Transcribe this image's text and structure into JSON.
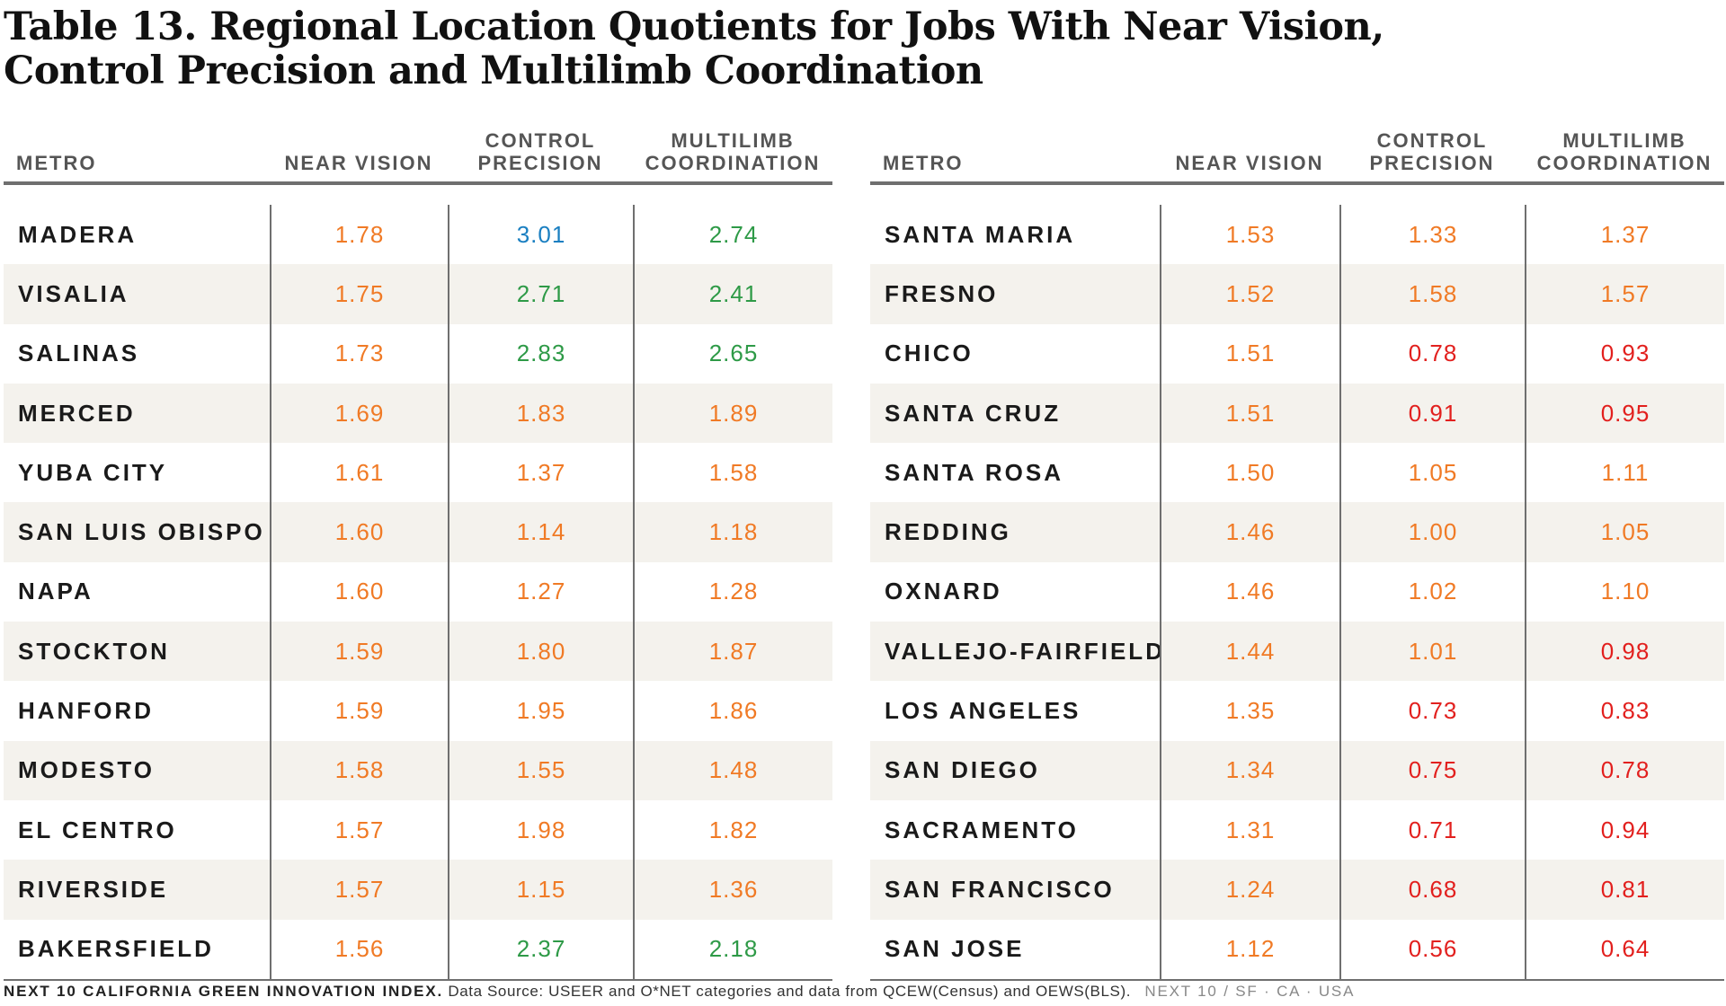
{
  "title": {
    "line1": "Table 13. Regional Location Quotients for Jobs With Near Vision,",
    "line2": "Control Precision and Multilimb Coordination"
  },
  "columns": {
    "metro": "METRO",
    "near_vision": "NEAR VISION",
    "control_precision": [
      "CONTROL",
      "PRECISION"
    ],
    "multilimb_coordination": [
      "MULTILIMB",
      "COORDINATION"
    ]
  },
  "colors": {
    "orange": "#f07a25",
    "red": "#e2201e",
    "green": "#2e9a47",
    "blue": "#1a7fc1"
  },
  "left_rows": [
    {
      "metro": "MADERA",
      "near_vision": {
        "v": "1.78",
        "c": "orange"
      },
      "control_precision": {
        "v": "3.01",
        "c": "blue"
      },
      "multilimb": {
        "v": "2.74",
        "c": "green"
      }
    },
    {
      "metro": "VISALIA",
      "near_vision": {
        "v": "1.75",
        "c": "orange"
      },
      "control_precision": {
        "v": "2.71",
        "c": "green"
      },
      "multilimb": {
        "v": "2.41",
        "c": "green"
      }
    },
    {
      "metro": "SALINAS",
      "near_vision": {
        "v": "1.73",
        "c": "orange"
      },
      "control_precision": {
        "v": "2.83",
        "c": "green"
      },
      "multilimb": {
        "v": "2.65",
        "c": "green"
      }
    },
    {
      "metro": "MERCED",
      "near_vision": {
        "v": "1.69",
        "c": "orange"
      },
      "control_precision": {
        "v": "1.83",
        "c": "orange"
      },
      "multilimb": {
        "v": "1.89",
        "c": "orange"
      }
    },
    {
      "metro": "YUBA CITY",
      "near_vision": {
        "v": "1.61",
        "c": "orange"
      },
      "control_precision": {
        "v": "1.37",
        "c": "orange"
      },
      "multilimb": {
        "v": "1.58",
        "c": "orange"
      }
    },
    {
      "metro": "SAN LUIS OBISPO",
      "near_vision": {
        "v": "1.60",
        "c": "orange"
      },
      "control_precision": {
        "v": "1.14",
        "c": "orange"
      },
      "multilimb": {
        "v": "1.18",
        "c": "orange"
      }
    },
    {
      "metro": "NAPA",
      "near_vision": {
        "v": "1.60",
        "c": "orange"
      },
      "control_precision": {
        "v": "1.27",
        "c": "orange"
      },
      "multilimb": {
        "v": "1.28",
        "c": "orange"
      }
    },
    {
      "metro": "STOCKTON",
      "near_vision": {
        "v": "1.59",
        "c": "orange"
      },
      "control_precision": {
        "v": "1.80",
        "c": "orange"
      },
      "multilimb": {
        "v": "1.87",
        "c": "orange"
      }
    },
    {
      "metro": "HANFORD",
      "near_vision": {
        "v": "1.59",
        "c": "orange"
      },
      "control_precision": {
        "v": "1.95",
        "c": "orange"
      },
      "multilimb": {
        "v": "1.86",
        "c": "orange"
      }
    },
    {
      "metro": "MODESTO",
      "near_vision": {
        "v": "1.58",
        "c": "orange"
      },
      "control_precision": {
        "v": "1.55",
        "c": "orange"
      },
      "multilimb": {
        "v": "1.48",
        "c": "orange"
      }
    },
    {
      "metro": "EL CENTRO",
      "near_vision": {
        "v": "1.57",
        "c": "orange"
      },
      "control_precision": {
        "v": "1.98",
        "c": "orange"
      },
      "multilimb": {
        "v": "1.82",
        "c": "orange"
      }
    },
    {
      "metro": "RIVERSIDE",
      "near_vision": {
        "v": "1.57",
        "c": "orange"
      },
      "control_precision": {
        "v": "1.15",
        "c": "orange"
      },
      "multilimb": {
        "v": "1.36",
        "c": "orange"
      }
    },
    {
      "metro": "BAKERSFIELD",
      "near_vision": {
        "v": "1.56",
        "c": "orange"
      },
      "control_precision": {
        "v": "2.37",
        "c": "green"
      },
      "multilimb": {
        "v": "2.18",
        "c": "green"
      }
    }
  ],
  "right_rows": [
    {
      "metro": "SANTA MARIA",
      "near_vision": {
        "v": "1.53",
        "c": "orange"
      },
      "control_precision": {
        "v": "1.33",
        "c": "orange"
      },
      "multilimb": {
        "v": "1.37",
        "c": "orange"
      }
    },
    {
      "metro": "FRESNO",
      "near_vision": {
        "v": "1.52",
        "c": "orange"
      },
      "control_precision": {
        "v": "1.58",
        "c": "orange"
      },
      "multilimb": {
        "v": "1.57",
        "c": "orange"
      }
    },
    {
      "metro": "CHICO",
      "near_vision": {
        "v": "1.51",
        "c": "orange"
      },
      "control_precision": {
        "v": "0.78",
        "c": "red"
      },
      "multilimb": {
        "v": "0.93",
        "c": "red"
      }
    },
    {
      "metro": "SANTA CRUZ",
      "near_vision": {
        "v": "1.51",
        "c": "orange"
      },
      "control_precision": {
        "v": "0.91",
        "c": "red"
      },
      "multilimb": {
        "v": "0.95",
        "c": "red"
      }
    },
    {
      "metro": "SANTA ROSA",
      "near_vision": {
        "v": "1.50",
        "c": "orange"
      },
      "control_precision": {
        "v": "1.05",
        "c": "orange"
      },
      "multilimb": {
        "v": "1.11",
        "c": "orange"
      }
    },
    {
      "metro": "REDDING",
      "near_vision": {
        "v": "1.46",
        "c": "orange"
      },
      "control_precision": {
        "v": "1.00",
        "c": "orange"
      },
      "multilimb": {
        "v": "1.05",
        "c": "orange"
      }
    },
    {
      "metro": "OXNARD",
      "near_vision": {
        "v": "1.46",
        "c": "orange"
      },
      "control_precision": {
        "v": "1.02",
        "c": "orange"
      },
      "multilimb": {
        "v": "1.10",
        "c": "orange"
      }
    },
    {
      "metro": "VALLEJO-FAIRFIELD",
      "near_vision": {
        "v": "1.44",
        "c": "orange"
      },
      "control_precision": {
        "v": "1.01",
        "c": "orange"
      },
      "multilimb": {
        "v": "0.98",
        "c": "red"
      }
    },
    {
      "metro": "LOS ANGELES",
      "near_vision": {
        "v": "1.35",
        "c": "orange"
      },
      "control_precision": {
        "v": "0.73",
        "c": "red"
      },
      "multilimb": {
        "v": "0.83",
        "c": "red"
      }
    },
    {
      "metro": "SAN DIEGO",
      "near_vision": {
        "v": "1.34",
        "c": "orange"
      },
      "control_precision": {
        "v": "0.75",
        "c": "red"
      },
      "multilimb": {
        "v": "0.78",
        "c": "red"
      }
    },
    {
      "metro": "SACRAMENTO",
      "near_vision": {
        "v": "1.31",
        "c": "orange"
      },
      "control_precision": {
        "v": "0.71",
        "c": "red"
      },
      "multilimb": {
        "v": "0.94",
        "c": "red"
      }
    },
    {
      "metro": "SAN FRANCISCO",
      "near_vision": {
        "v": "1.24",
        "c": "orange"
      },
      "control_precision": {
        "v": "0.68",
        "c": "red"
      },
      "multilimb": {
        "v": "0.81",
        "c": "red"
      }
    },
    {
      "metro": "SAN JOSE",
      "near_vision": {
        "v": "1.12",
        "c": "orange"
      },
      "control_precision": {
        "v": "0.56",
        "c": "red"
      },
      "multilimb": {
        "v": "0.64",
        "c": "red"
      }
    }
  ],
  "footer": {
    "brand": "NEXT 10 CALIFORNIA GREEN INNOVATION INDEX.",
    "source": "Data Source: USEER and O*NET categories and data from QCEW(Census) and OEWS(BLS).",
    "tagline": "NEXT 10  /  SF · CA · USA"
  }
}
